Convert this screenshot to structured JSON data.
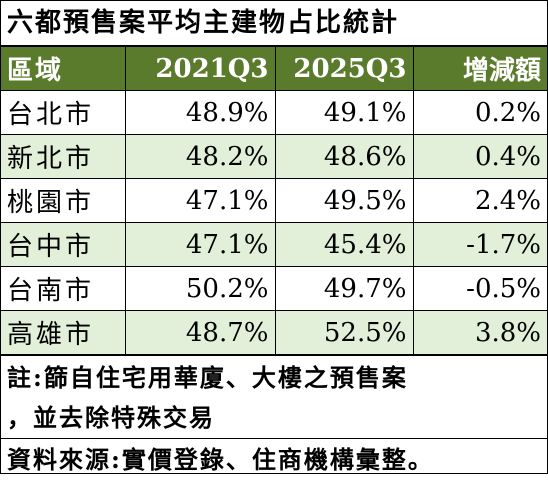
{
  "title": "六都預售案平均主建物占比統計",
  "table": {
    "headers": [
      "區域",
      "2021Q3",
      "2025Q3",
      "增減額"
    ],
    "rows": [
      [
        "台北市",
        "48.9%",
        "49.1%",
        "0.2%"
      ],
      [
        "新北市",
        "48.2%",
        "48.6%",
        "0.4%"
      ],
      [
        "桃園市",
        "47.1%",
        "49.5%",
        "2.4%"
      ],
      [
        "台中市",
        "47.1%",
        "45.4%",
        "-1.7%"
      ],
      [
        "台南市",
        "50.2%",
        "49.7%",
        "-0.5%"
      ],
      [
        "高雄市",
        "48.7%",
        "52.5%",
        "3.8%"
      ]
    ]
  },
  "note": {
    "line1": "註:篩自住宅用華廈、大樓之預售案",
    "line2": "，並去除特殊交易"
  },
  "source": "資料來源:實價登錄、住商機構彙整。",
  "colors": {
    "header_bg": "#5a7b2c",
    "header_text": "#ffffff",
    "alt_row_bg": "#e2efd9"
  }
}
